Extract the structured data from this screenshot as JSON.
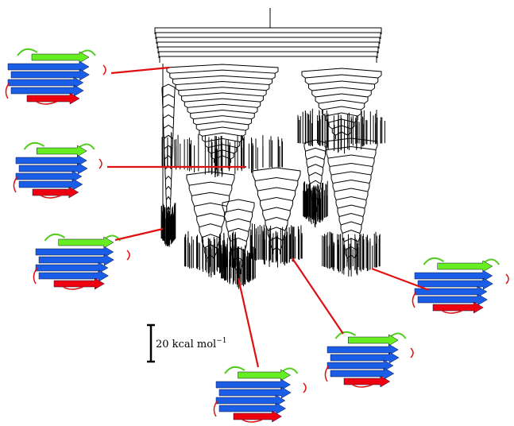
{
  "scale_bar": {
    "label": "20 kcal mol",
    "exponent": "−1"
  }
}
